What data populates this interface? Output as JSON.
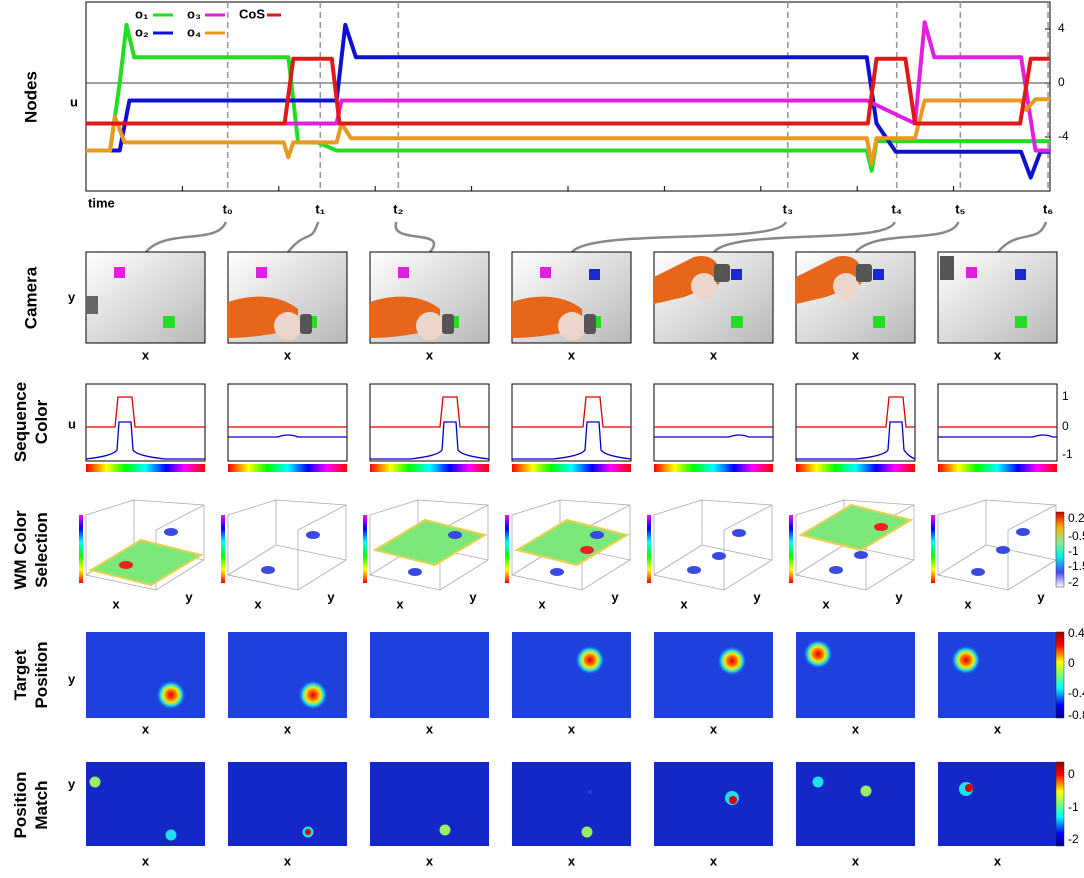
{
  "chart_data": {
    "type": "line",
    "row_label": "Nodes",
    "ylabel": "u",
    "xlabel": "time",
    "xlim": [
      0,
      100
    ],
    "ylim": [
      -8,
      6
    ],
    "yticks": [
      4,
      0,
      -4
    ],
    "zero_line": true,
    "series": [
      {
        "name": "o₁",
        "color": "#22dd22",
        "x": [
          0,
          2.5,
          3.5,
          4.2,
          5,
          21,
          22,
          24,
          26,
          81,
          81.5,
          82,
          100
        ],
        "values": [
          -5,
          -5,
          0,
          4.3,
          1.9,
          1.9,
          -4.4,
          -4.4,
          -5,
          -5,
          -6.5,
          -4.3,
          -4.3
        ]
      },
      {
        "name": "o₂",
        "color": "#1010d0",
        "x": [
          0,
          3.5,
          4.5,
          26,
          26.9,
          28,
          81,
          82,
          84,
          97,
          98,
          99,
          100
        ],
        "values": [
          -5,
          -5,
          -1.3,
          -1.3,
          4.3,
          1.9,
          1.9,
          -3,
          -5.1,
          -5.1,
          -7,
          -5.1,
          -5.1
        ]
      },
      {
        "name": "o₃",
        "color": "#e020e0",
        "x": [
          0,
          26,
          26.5,
          81,
          86,
          87,
          88,
          97,
          98.5,
          100
        ],
        "values": [
          -3,
          -3,
          -1.3,
          -1.3,
          -3,
          4.5,
          1.9,
          1.9,
          -5,
          -5
        ]
      },
      {
        "name": "o₄",
        "color": "#e89a20",
        "x": [
          0,
          2.5,
          3,
          4,
          20.5,
          21,
          21.5,
          26,
          26.5,
          27.5,
          81,
          81.5,
          82,
          86,
          87,
          97,
          97.5,
          98.5,
          100
        ],
        "values": [
          -5,
          -5,
          -2.5,
          -4.4,
          -4.4,
          -5.5,
          -4.4,
          -4.4,
          -3,
          -4.1,
          -4.1,
          -6,
          -4.1,
          -4.1,
          -1.3,
          -1.3,
          -2,
          -1.2,
          -1.2
        ]
      },
      {
        "name": "CoS",
        "color": "#e01818",
        "x": [
          0,
          20.6,
          21.5,
          25.5,
          26.3,
          81.1,
          82,
          85,
          86,
          96.9,
          98,
          100
        ],
        "values": [
          -3,
          -3,
          1.8,
          1.8,
          -3,
          -3,
          1.8,
          1.8,
          -3,
          -3,
          1.8,
          1.8
        ]
      }
    ],
    "markers": [
      {
        "label": "t₀",
        "x": 14.7
      },
      {
        "label": "t₁",
        "x": 24.3
      },
      {
        "label": "t₂",
        "x": 32.4
      },
      {
        "label": "t₃",
        "x": 72.8
      },
      {
        "label": "t₄",
        "x": 84.1
      },
      {
        "label": "t₅",
        "x": 90.7
      },
      {
        "label": "t₆",
        "x": 99.8
      }
    ]
  },
  "rows": {
    "camera": {
      "label": [
        "Camera"
      ],
      "x_label": "x",
      "y_label": "y"
    },
    "sequence_color": {
      "label": [
        "Sequence",
        "Color"
      ],
      "y_label": "u",
      "ticks": [
        "1",
        "0",
        "-1"
      ]
    },
    "wm_color_selection": {
      "label": [
        "WM Color",
        "Selection"
      ],
      "x_label": "x",
      "y_label": "y",
      "colorbar_ticks": [
        "0.2",
        "-0.5",
        "-1",
        "-1.5",
        "-2"
      ]
    },
    "target_position": {
      "label": [
        "Target",
        "Position"
      ],
      "x_label": "x",
      "y_label": "y",
      "colorbar_ticks": [
        "0.4",
        "0",
        "-0.4",
        "-0.8"
      ]
    },
    "position_match": {
      "label": [
        "Position",
        "Match"
      ],
      "x_label": "x",
      "y_label": "y",
      "colorbar_ticks": [
        "0",
        "-1",
        "-2"
      ]
    }
  }
}
